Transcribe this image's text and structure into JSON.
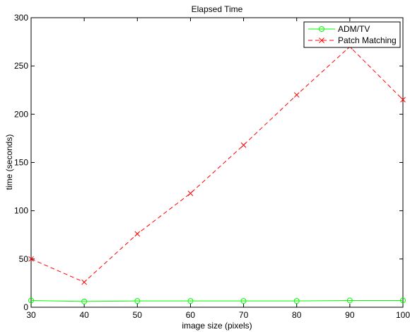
{
  "chart_data": {
    "type": "line",
    "title": "Elapsed Time",
    "xlabel": "image size (pixels)",
    "ylabel": "time (seconds)",
    "xlim": [
      30,
      100
    ],
    "ylim": [
      0,
      300
    ],
    "xticks": [
      30,
      40,
      50,
      60,
      70,
      80,
      90,
      100
    ],
    "yticks": [
      0,
      50,
      100,
      150,
      200,
      250,
      300
    ],
    "grid": false,
    "legend_position": "top-right",
    "x": [
      30,
      40,
      50,
      60,
      70,
      80,
      90,
      100
    ],
    "series": [
      {
        "name": "ADM/TV",
        "color": "#00ff00",
        "line_style": "solid",
        "marker": "circle",
        "values": [
          7,
          6,
          6.5,
          6.5,
          6.5,
          6.5,
          7,
          7
        ]
      },
      {
        "name": "Patch Matching",
        "color": "#ff0000",
        "line_style": "dashed",
        "marker": "x",
        "values": [
          50,
          26,
          76,
          118,
          168,
          220,
          270,
          215
        ]
      }
    ]
  }
}
